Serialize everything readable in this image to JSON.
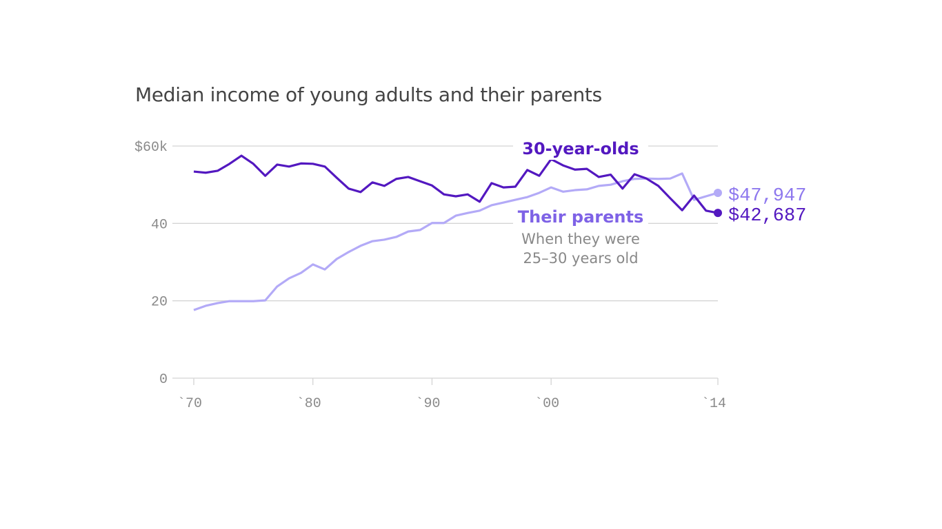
{
  "chart_data": {
    "type": "line",
    "title": "Median income of young adults and their parents",
    "xlabel": "",
    "ylabel": "",
    "xlim": [
      1970,
      2014
    ],
    "ylim": [
      0,
      60
    ],
    "grid": true,
    "y_ticks": [
      {
        "value": 0,
        "label": "0"
      },
      {
        "value": 20,
        "label": "20"
      },
      {
        "value": 40,
        "label": "40"
      },
      {
        "value": 60,
        "label": "$60k"
      }
    ],
    "x_ticks": [
      {
        "value": 1970,
        "label": "`70"
      },
      {
        "value": 1980,
        "label": "`80"
      },
      {
        "value": 1990,
        "label": "`90"
      },
      {
        "value": 2000,
        "label": "`00"
      },
      {
        "value": 2014,
        "label": "`14"
      }
    ],
    "x": [
      1970,
      1971,
      1972,
      1973,
      1974,
      1975,
      1976,
      1977,
      1978,
      1979,
      1980,
      1981,
      1982,
      1983,
      1984,
      1985,
      1986,
      1987,
      1988,
      1989,
      1990,
      1991,
      1992,
      1993,
      1994,
      1995,
      1996,
      1997,
      1998,
      1999,
      2000,
      2001,
      2002,
      2003,
      2004,
      2005,
      2006,
      2007,
      2008,
      2009,
      2010,
      2011,
      2012,
      2013,
      2014
    ],
    "series": [
      {
        "name": "30-year-olds",
        "color": "#5318c0",
        "end_label": "$42,687",
        "values": [
          53.4,
          53.1,
          53.6,
          55.4,
          57.5,
          55.4,
          52.3,
          55.2,
          54.7,
          55.5,
          55.4,
          54.7,
          51.8,
          49.0,
          48.1,
          50.6,
          49.7,
          51.5,
          52.0,
          50.9,
          49.8,
          47.5,
          47.0,
          47.5,
          45.6,
          50.4,
          49.3,
          49.5,
          53.8,
          52.3,
          56.6,
          55.0,
          53.9,
          54.1,
          52.0,
          52.6,
          49.0,
          52.7,
          51.6,
          49.7,
          46.5,
          43.4,
          47.2,
          43.3,
          42.7
        ]
      },
      {
        "name": "Their parents",
        "color": "#b3aaf7",
        "label_color": "#7e62e6",
        "end_label": "$47,947",
        "note": [
          "When they were",
          "25–30 years old"
        ],
        "values": [
          17.6,
          18.7,
          19.4,
          19.9,
          19.9,
          19.9,
          20.1,
          23.7,
          25.8,
          27.2,
          29.4,
          28.1,
          30.8,
          32.6,
          34.2,
          35.4,
          35.8,
          36.5,
          37.9,
          38.3,
          40.1,
          40.1,
          42.0,
          42.7,
          43.3,
          44.7,
          45.4,
          46.1,
          46.8,
          47.9,
          49.3,
          48.2,
          48.6,
          48.8,
          49.7,
          50.0,
          50.9,
          51.5,
          51.6,
          51.5,
          51.6,
          52.9,
          46.1,
          47.0,
          47.9
        ]
      }
    ]
  }
}
